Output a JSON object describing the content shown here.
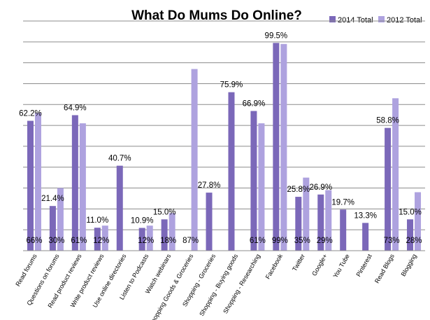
{
  "chart_data": {
    "type": "bar",
    "title": "What Do Mums Do Online?",
    "xlabel": "",
    "ylabel": "",
    "ylim": [
      0,
      100
    ],
    "grid": true,
    "legend_position": "top-right",
    "categories": [
      "Read forums",
      "Questions on forums",
      "Read product reviews",
      "Write product reviews",
      "Use online directories",
      "Listen to Podcasts",
      "Watch webinars",
      "Shopping Goods & Groceries",
      "Shopping - Groceries",
      "Shopping - Buying goods",
      "Shopping - Researching",
      "Facebook",
      "Twitter",
      "Google+",
      "You Tube",
      "Pinterest",
      "Read Blogs",
      "Blogging"
    ],
    "series": [
      {
        "name": "2014 Total",
        "color": "#7b68b9",
        "values": [
          62.2,
          21.4,
          64.9,
          11.0,
          40.7,
          10.9,
          15.0,
          null,
          27.8,
          75.9,
          66.9,
          99.5,
          25.8,
          26.9,
          19.7,
          13.3,
          58.8,
          15.0
        ]
      },
      {
        "name": "2012 Total",
        "color": "#aea2df",
        "values": [
          66,
          30,
          61,
          12,
          null,
          12,
          18,
          87,
          null,
          null,
          61,
          99,
          35,
          29,
          null,
          null,
          73,
          28
        ]
      }
    ],
    "value_labels_2014": [
      "62.2%",
      "21.4%",
      "64.9%",
      "11.0%",
      "40.7%",
      "10.9%",
      "15.0%",
      "",
      "27.8%",
      "75.9%",
      "66.9%",
      "99.5%",
      "25.8%",
      "26.9%",
      "19.7%",
      "13.3%",
      "58.8%",
      "15.0%"
    ],
    "value_labels_2012": [
      "66%",
      "30%",
      "61%",
      "12%",
      "",
      "12%",
      "18%",
      "87%",
      "",
      "",
      "61%",
      "99%",
      "35%",
      "29%",
      "",
      "",
      "73%",
      "28%"
    ]
  }
}
